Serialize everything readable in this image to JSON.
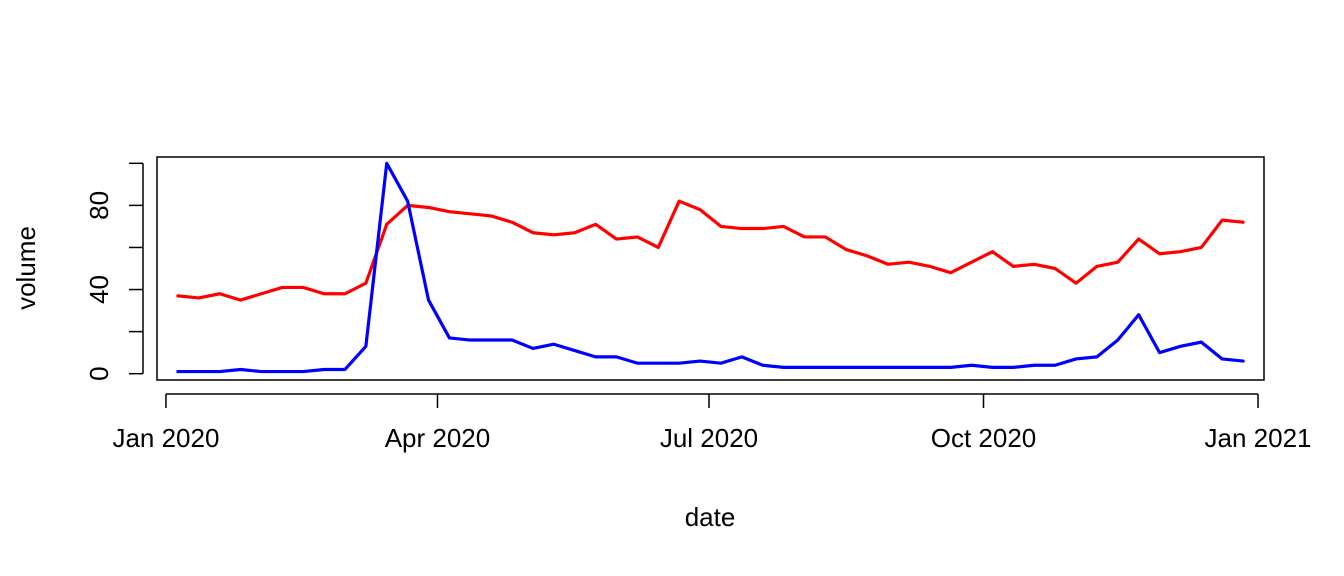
{
  "chart_data": {
    "type": "line",
    "title": "",
    "xlabel": "date",
    "ylabel": "volume",
    "xlim": [
      "2019-12-29",
      "2021-01-03"
    ],
    "ylim": [
      -3,
      103
    ],
    "x_ticks": [
      {
        "date": "2020-01-01",
        "label": "Jan 2020"
      },
      {
        "date": "2020-04-01",
        "label": "Apr 2020"
      },
      {
        "date": "2020-07-01",
        "label": "Jul 2020"
      },
      {
        "date": "2020-10-01",
        "label": "Oct 2020"
      },
      {
        "date": "2021-01-01",
        "label": "Jan 2021"
      }
    ],
    "y_ticks": [
      0,
      20,
      40,
      60,
      80,
      100
    ],
    "y_tick_labels": [
      "0",
      "",
      "40",
      "",
      "80",
      ""
    ],
    "grid": false,
    "x": [
      "2020-01-05",
      "2020-01-12",
      "2020-01-19",
      "2020-01-26",
      "2020-02-02",
      "2020-02-09",
      "2020-02-16",
      "2020-02-23",
      "2020-03-01",
      "2020-03-08",
      "2020-03-15",
      "2020-03-22",
      "2020-03-29",
      "2020-04-05",
      "2020-04-12",
      "2020-04-19",
      "2020-04-26",
      "2020-05-03",
      "2020-05-10",
      "2020-05-17",
      "2020-05-24",
      "2020-05-31",
      "2020-06-07",
      "2020-06-14",
      "2020-06-21",
      "2020-06-28",
      "2020-07-05",
      "2020-07-12",
      "2020-07-19",
      "2020-07-26",
      "2020-08-02",
      "2020-08-09",
      "2020-08-16",
      "2020-08-23",
      "2020-08-30",
      "2020-09-06",
      "2020-09-13",
      "2020-09-20",
      "2020-09-27",
      "2020-10-04",
      "2020-10-11",
      "2020-10-18",
      "2020-10-25",
      "2020-11-01",
      "2020-11-08",
      "2020-11-15",
      "2020-11-22",
      "2020-11-29",
      "2020-12-06",
      "2020-12-13",
      "2020-12-20",
      "2020-12-27"
    ],
    "series": [
      {
        "color": "#ff0000",
        "values": [
          37,
          36,
          38,
          35,
          38,
          41,
          41,
          38,
          38,
          43,
          71,
          80,
          79,
          77,
          76,
          75,
          72,
          67,
          66,
          67,
          71,
          64,
          65,
          60,
          82,
          78,
          70,
          69,
          69,
          70,
          65,
          65,
          59,
          56,
          52,
          53,
          51,
          48,
          53,
          58,
          51,
          52,
          50,
          43,
          51,
          53,
          64,
          57,
          58,
          60,
          73,
          72
        ]
      },
      {
        "color": "#0000ff",
        "values": [
          1,
          1,
          1,
          2,
          1,
          1,
          1,
          2,
          2,
          13,
          100,
          82,
          35,
          17,
          16,
          16,
          16,
          12,
          14,
          11,
          8,
          8,
          5,
          5,
          5,
          6,
          5,
          8,
          4,
          3,
          3,
          3,
          3,
          3,
          3,
          3,
          3,
          3,
          4,
          3,
          3,
          4,
          4,
          7,
          8,
          16,
          28,
          10,
          13,
          15,
          7,
          6
        ]
      }
    ]
  }
}
